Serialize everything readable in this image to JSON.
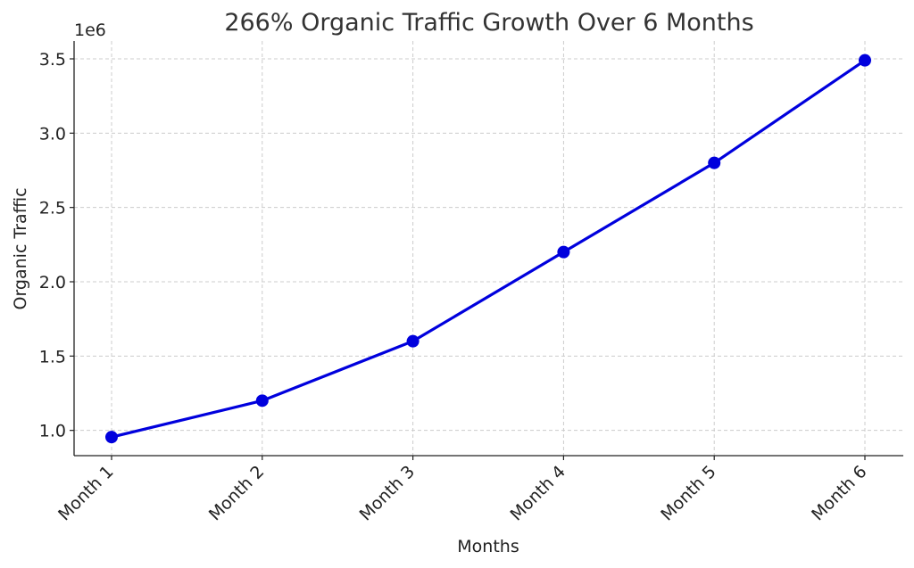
{
  "chart_data": {
    "type": "line",
    "title": "266% Organic Traffic Growth Over 6 Months",
    "xlabel": "Months",
    "ylabel": "Organic Traffic",
    "y_offset_label": "1e6",
    "categories": [
      "Month 1",
      "Month 2",
      "Month 3",
      "Month 4",
      "Month 5",
      "Month 6"
    ],
    "series": [
      {
        "values": [
          955000,
          1200000,
          1600000,
          2200000,
          2800000,
          3490000
        ],
        "color": "#0000dd",
        "marker": "circle"
      }
    ],
    "yticks": [
      1000000,
      1500000,
      2000000,
      2500000,
      3000000,
      3500000
    ],
    "ytick_labels": [
      "1.0",
      "1.5",
      "2.0",
      "2.5",
      "3.0",
      "3.5"
    ],
    "ylim": [
      830000,
      3620000
    ],
    "grid": true,
    "legend": false
  }
}
